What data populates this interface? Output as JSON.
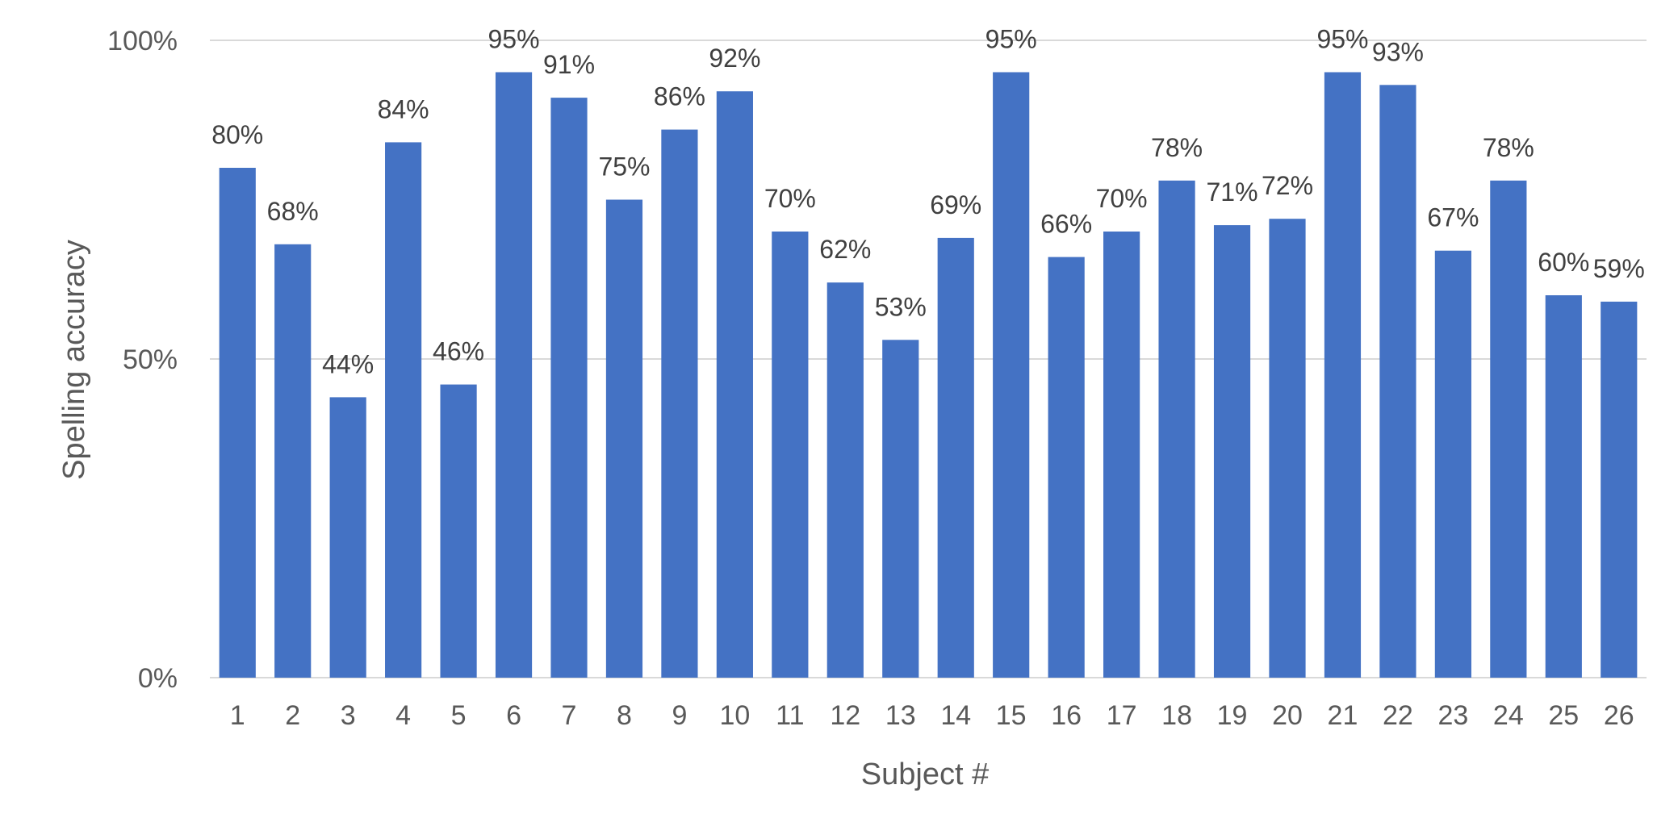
{
  "chart_data": {
    "type": "bar",
    "categories": [
      "1",
      "2",
      "3",
      "4",
      "5",
      "6",
      "7",
      "8",
      "9",
      "10",
      "11",
      "12",
      "13",
      "14",
      "15",
      "16",
      "17",
      "18",
      "19",
      "20",
      "21",
      "22",
      "23",
      "24",
      "25",
      "26"
    ],
    "series": [
      {
        "values": [
          80,
          68,
          44,
          84,
          46,
          95,
          91,
          75,
          86,
          92,
          70,
          62,
          53,
          69,
          95,
          66,
          70,
          78,
          71,
          72,
          95,
          93,
          67,
          78,
          60,
          59
        ],
        "color": "#4472c4"
      }
    ],
    "data_labels": [
      "80%",
      "68%",
      "44%",
      "84%",
      "46%",
      "95%",
      "91%",
      "75%",
      "86%",
      "92%",
      "70%",
      "62%",
      "53%",
      "69%",
      "95%",
      "66%",
      "70%",
      "78%",
      "71%",
      "72%",
      "95%",
      "93%",
      "67%",
      "78%",
      "60%",
      "59%"
    ],
    "xlabel": "Subject #",
    "ylabel": "Spelling accuracy",
    "ylim": [
      0,
      100
    ],
    "yticks": [
      0,
      50,
      100
    ],
    "ytick_labels": [
      "0%",
      "50%",
      "100%"
    ],
    "grid": true,
    "legend": "none"
  }
}
